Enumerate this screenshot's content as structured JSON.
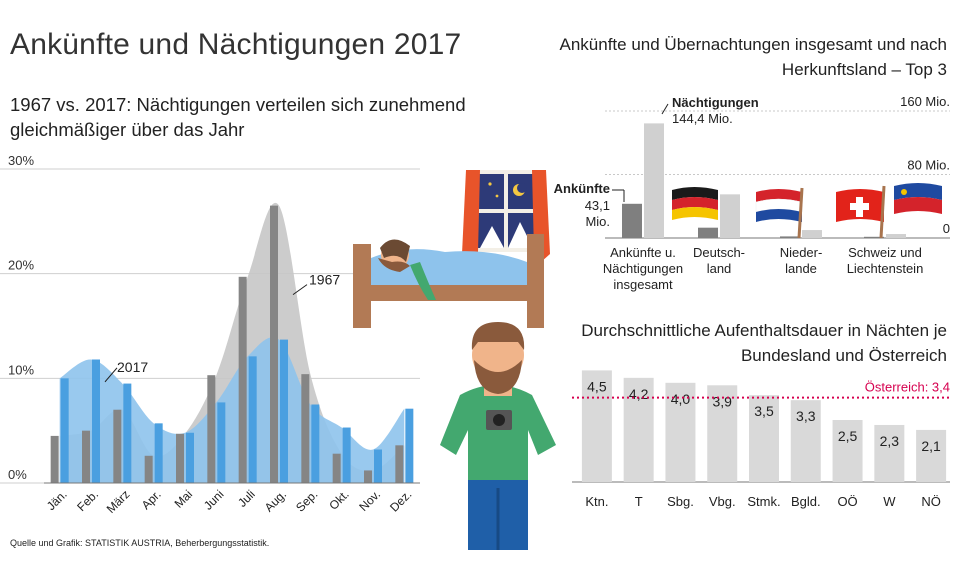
{
  "header": {
    "title": "Ankünfte und Nächtigungen 2017",
    "subtitle": "1967 vs. 2017: Nächtigungen verteilen sich zunehmend gleichmäßiger über das Jahr",
    "source": "Quelle und Grafik: STATISTIK AUSTRIA, Beherbergungsstatistik."
  },
  "colors": {
    "series_1967": "#858585",
    "series_2017": "#4a9fe0",
    "area_1967": "#c6c6c6",
    "area_2017": "#8ec3ec",
    "top3_dark": "#7f7f7f",
    "top3_light": "#d0d0d0",
    "stay_bar": "#d9d9d9",
    "reference_line": "#d6004f"
  },
  "illustration_icons": [
    "window-icon",
    "sleeping-person-bed-icon",
    "tourist-with-camera-icon"
  ],
  "chart_data": [
    {
      "id": "monthly",
      "type": "bar",
      "title": "1967 vs. 2017: Nächtigungen verteilen sich zunehmend gleichmäßiger über das Jahr",
      "categories": [
        "Jän.",
        "Feb.",
        "März",
        "Apr.",
        "Mai",
        "Juni",
        "Juli",
        "Aug.",
        "Sep.",
        "Okt.",
        "Nov.",
        "Dez."
      ],
      "series": [
        {
          "name": "1967",
          "values": [
            4.5,
            5.0,
            7.0,
            2.6,
            4.7,
            10.3,
            19.7,
            26.5,
            10.4,
            2.8,
            1.2,
            3.6
          ]
        },
        {
          "name": "2017",
          "values": [
            10.0,
            11.8,
            9.5,
            5.7,
            4.8,
            7.7,
            12.1,
            13.7,
            7.5,
            5.3,
            3.2,
            7.1
          ]
        }
      ],
      "ylabel": "",
      "ylim": [
        0,
        30
      ],
      "yticks": [
        "0%",
        "10%",
        "20%",
        "30%"
      ],
      "annotations": [
        "1967",
        "2017"
      ],
      "grid": true
    },
    {
      "id": "top3",
      "type": "bar",
      "title": "Ankünfte und Übernachtungen insgesamt und nach Herkunftsland – Top 3",
      "categories": [
        "Ankünfte u. Nächtigungen insgesamt",
        "Deutschland",
        "Niederlande",
        "Schweiz und Liechtenstein"
      ],
      "category_labels": [
        "Ankünfte u.\nNächtigungen\ninsgesamt",
        "Deutsch-\nland",
        "Nieder-\nlande",
        "Schweiz und\nLiechtenstein"
      ],
      "series": [
        {
          "name": "Ankünfte",
          "values": [
            43.1,
            13.0,
            2.0,
            1.5
          ]
        },
        {
          "name": "Nächtigungen",
          "values": [
            144.4,
            55.0,
            10.0,
            5.0
          ]
        }
      ],
      "ylim": [
        0,
        160
      ],
      "yticks": [
        "0",
        "80 Mio.",
        "160 Mio."
      ],
      "label_arrivals_name": "Ankünfte",
      "label_arrivals_value": "43,1",
      "label_arrivals_unit": "Mio.",
      "label_nights_name": "Nächtigungen",
      "label_nights_value": "144,4 Mio.",
      "flags": [
        "flag-germany-icon",
        "flag-netherlands-icon",
        "flag-switzerland-icon",
        "flag-liechtenstein-icon"
      ]
    },
    {
      "id": "stay",
      "type": "bar",
      "title": "Durchschnittliche Aufenthaltsdauer in Nächten je Bundesland und Österreich",
      "categories": [
        "Ktn.",
        "T",
        "Sbg.",
        "Vbg.",
        "Stmk.",
        "Bgld.",
        "OÖ",
        "W",
        "NÖ"
      ],
      "values": [
        4.5,
        4.2,
        4.0,
        3.9,
        3.5,
        3.3,
        2.5,
        2.3,
        2.1
      ],
      "value_labels": [
        "4,5",
        "4,2",
        "4,0",
        "3,9",
        "3,5",
        "3,3",
        "2,5",
        "2,3",
        "2,1"
      ],
      "ylim": [
        0,
        5
      ],
      "reference": {
        "label": "Österreich: 3,4",
        "value": 3.4
      }
    }
  ]
}
